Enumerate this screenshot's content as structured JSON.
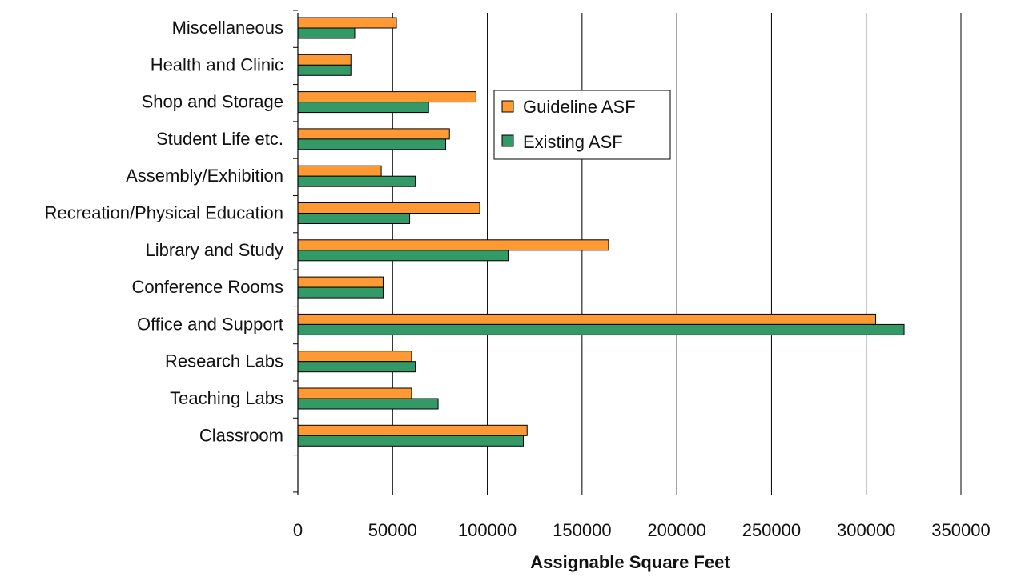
{
  "chart_data": {
    "type": "bar",
    "orientation": "horizontal",
    "title": "",
    "xlabel": "Assignable Square Feet",
    "ylabel": "",
    "xlim": [
      0,
      350000
    ],
    "x_ticks": [
      "0",
      "50000",
      "100000",
      "150000",
      "200000",
      "250000",
      "300000",
      "350000"
    ],
    "grid": "vertical",
    "legend_position": "top-center",
    "categories": [
      "Miscellaneous",
      "Health and Clinic",
      "Shop and Storage",
      "Student Life etc.",
      "Assembly/Exhibition",
      "Recreation/Physical Education",
      "Library and Study",
      "Conference Rooms",
      "Office and Support",
      "Research Labs",
      "Teaching Labs",
      "Classroom"
    ],
    "series": [
      {
        "name": "Guideline ASF",
        "color": "#FF9933",
        "values": [
          52000,
          28000,
          94000,
          80000,
          44000,
          96000,
          164000,
          45000,
          305000,
          60000,
          60000,
          121000
        ]
      },
      {
        "name": "Existing ASF",
        "color": "#339966",
        "values": [
          30000,
          28000,
          69000,
          78000,
          62000,
          59000,
          111000,
          45000,
          320000,
          62000,
          74000,
          119000
        ]
      }
    ]
  }
}
